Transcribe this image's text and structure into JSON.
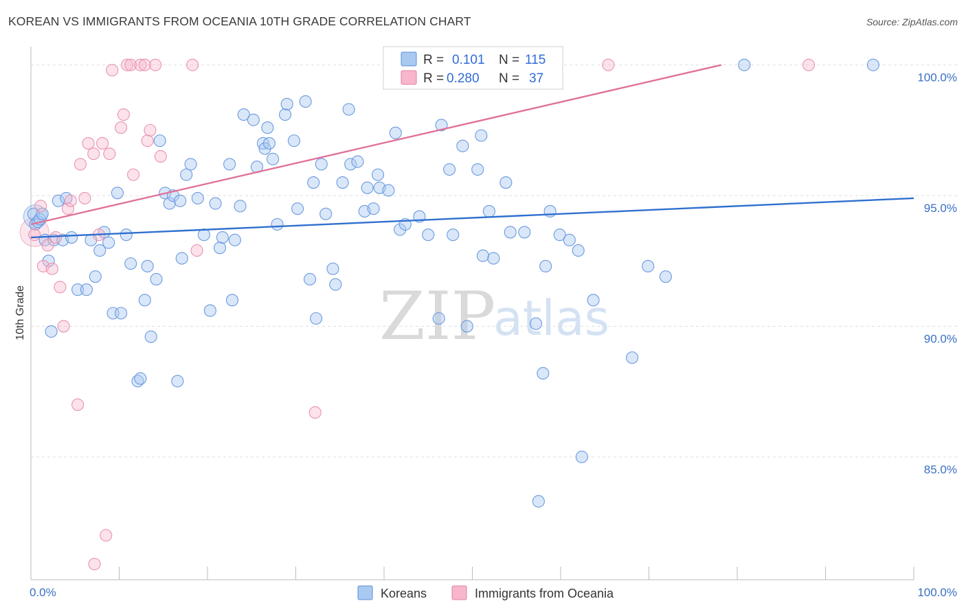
{
  "title": "KOREAN VS IMMIGRANTS FROM OCEANIA 10TH GRADE CORRELATION CHART",
  "source": "Source: ZipAtlas.com",
  "watermark": {
    "zip": "ZIP",
    "atlas": "atlas"
  },
  "legend": {
    "r_label": "R =",
    "n_label": "N =",
    "entries": [
      {
        "name": "Koreans",
        "r": "0.101",
        "n": "115",
        "fill": "#aac9f1",
        "stroke": "#5a8ed6"
      },
      {
        "name": "Immigrants from Oceania",
        "r": "0.280",
        "n": "37",
        "fill": "#f7b6cb",
        "stroke": "#e27fa0"
      }
    ]
  },
  "chart_data": {
    "type": "scatter",
    "title": "KOREAN VS IMMIGRANTS FROM OCEANIA 10TH GRADE CORRELATION CHART",
    "xlabel": "",
    "ylabel": "10th Grade",
    "xlim": [
      0,
      100
    ],
    "ylim": [
      80.3,
      100.7
    ],
    "x_tick_labels": [
      "0.0%",
      "100.0%"
    ],
    "y_ticks": [
      85,
      90,
      95,
      100
    ],
    "y_tick_labels": [
      "85.0%",
      "90.0%",
      "95.0%",
      "100.0%"
    ],
    "grid": true,
    "colors": {
      "Koreans": "#5a8ed6",
      "Immigrants from Oceania": "#e27fa0",
      "korean_line": "#2f6fcf",
      "oceania_line": "#e0729a"
    },
    "series": [
      {
        "name": "Koreans",
        "r": 0.101,
        "n": 115,
        "trendline": {
          "x": [
            0,
            100
          ],
          "y": [
            93.4,
            94.9
          ]
        },
        "points": [
          [
            0.3,
            94.3
          ],
          [
            0.5,
            93.9
          ],
          [
            0.8,
            94.0
          ],
          [
            1.0,
            94.1
          ],
          [
            1.3,
            94.3
          ],
          [
            1.6,
            93.3
          ],
          [
            2.0,
            92.5
          ],
          [
            2.3,
            89.8
          ],
          [
            2.6,
            93.3
          ],
          [
            3.1,
            94.8
          ],
          [
            3.6,
            93.3
          ],
          [
            4.0,
            94.9
          ],
          [
            4.6,
            93.4
          ],
          [
            5.3,
            91.4
          ],
          [
            6.3,
            91.4
          ],
          [
            6.8,
            93.3
          ],
          [
            7.3,
            91.9
          ],
          [
            7.8,
            92.9
          ],
          [
            8.3,
            93.6
          ],
          [
            8.8,
            93.2
          ],
          [
            9.3,
            90.5
          ],
          [
            9.8,
            95.1
          ],
          [
            10.2,
            90.5
          ],
          [
            10.8,
            93.5
          ],
          [
            11.3,
            92.4
          ],
          [
            12.1,
            87.9
          ],
          [
            12.4,
            88.0
          ],
          [
            12.9,
            91.0
          ],
          [
            13.2,
            92.3
          ],
          [
            13.6,
            89.6
          ],
          [
            14.2,
            91.8
          ],
          [
            14.6,
            97.1
          ],
          [
            15.2,
            95.1
          ],
          [
            15.7,
            94.7
          ],
          [
            16.1,
            95.0
          ],
          [
            16.6,
            87.9
          ],
          [
            17.1,
            92.6
          ],
          [
            17.6,
            95.8
          ],
          [
            18.1,
            96.2
          ],
          [
            18.9,
            94.9
          ],
          [
            19.6,
            93.5
          ],
          [
            20.3,
            90.6
          ],
          [
            20.9,
            94.7
          ],
          [
            21.4,
            93.0
          ],
          [
            21.7,
            93.4
          ],
          [
            22.5,
            96.2
          ],
          [
            22.8,
            91.0
          ],
          [
            23.1,
            93.3
          ],
          [
            23.7,
            94.6
          ],
          [
            24.1,
            98.1
          ],
          [
            25.2,
            97.9
          ],
          [
            25.6,
            96.1
          ],
          [
            26.3,
            97.0
          ],
          [
            26.5,
            96.8
          ],
          [
            27.0,
            97.0
          ],
          [
            27.4,
            96.4
          ],
          [
            27.9,
            93.9
          ],
          [
            28.8,
            98.1
          ],
          [
            29.0,
            98.5
          ],
          [
            29.8,
            97.1
          ],
          [
            30.2,
            94.5
          ],
          [
            31.1,
            98.6
          ],
          [
            31.6,
            91.8
          ],
          [
            32.0,
            95.5
          ],
          [
            32.3,
            90.3
          ],
          [
            32.9,
            96.2
          ],
          [
            33.4,
            94.3
          ],
          [
            34.2,
            92.2
          ],
          [
            34.5,
            91.6
          ],
          [
            35.3,
            95.5
          ],
          [
            36.0,
            98.3
          ],
          [
            36.2,
            96.2
          ],
          [
            37.0,
            96.3
          ],
          [
            37.8,
            94.4
          ],
          [
            38.1,
            95.3
          ],
          [
            38.8,
            94.5
          ],
          [
            39.3,
            95.8
          ],
          [
            39.5,
            95.3
          ],
          [
            40.5,
            95.2
          ],
          [
            41.3,
            97.4
          ],
          [
            41.8,
            93.7
          ],
          [
            42.4,
            93.9
          ],
          [
            45.0,
            93.5
          ],
          [
            46.2,
            90.3
          ],
          [
            46.5,
            97.7
          ],
          [
            47.4,
            96.0
          ],
          [
            47.8,
            93.5
          ],
          [
            48.9,
            96.9
          ],
          [
            49.4,
            90.0
          ],
          [
            50.6,
            96.0
          ],
          [
            51.0,
            97.3
          ],
          [
            51.2,
            92.7
          ],
          [
            51.9,
            94.4
          ],
          [
            52.4,
            92.6
          ],
          [
            53.8,
            95.5
          ],
          [
            54.3,
            93.6
          ],
          [
            55.9,
            93.6
          ],
          [
            57.2,
            90.1
          ],
          [
            58.0,
            88.2
          ],
          [
            58.3,
            92.3
          ],
          [
            58.8,
            94.4
          ],
          [
            59.9,
            93.5
          ],
          [
            61.0,
            93.3
          ],
          [
            62.0,
            92.9
          ],
          [
            62.4,
            85.0
          ],
          [
            63.7,
            91.0
          ],
          [
            68.1,
            88.8
          ],
          [
            69.9,
            92.3
          ],
          [
            71.9,
            91.9
          ],
          [
            57.5,
            83.3
          ],
          [
            80.8,
            100.0
          ],
          [
            95.4,
            100.0
          ],
          [
            16.9,
            94.8
          ],
          [
            26.8,
            97.6
          ],
          [
            44.0,
            94.2
          ]
        ]
      },
      {
        "name": "Immigrants from Oceania",
        "r": 0.28,
        "n": 37,
        "trendline": {
          "x": [
            0,
            78.2
          ],
          "y": [
            93.9,
            100.0
          ]
        },
        "points": [
          [
            0.4,
            93.5
          ],
          [
            1.1,
            94.6
          ],
          [
            1.4,
            92.3
          ],
          [
            1.9,
            93.1
          ],
          [
            2.4,
            92.2
          ],
          [
            2.8,
            93.4
          ],
          [
            3.3,
            91.5
          ],
          [
            3.7,
            90.0
          ],
          [
            4.2,
            94.5
          ],
          [
            4.5,
            94.8
          ],
          [
            5.3,
            87.0
          ],
          [
            5.6,
            96.2
          ],
          [
            6.1,
            94.9
          ],
          [
            6.5,
            97.0
          ],
          [
            7.1,
            96.6
          ],
          [
            7.7,
            93.5
          ],
          [
            8.1,
            97.0
          ],
          [
            8.5,
            82.0
          ],
          [
            8.9,
            96.6
          ],
          [
            9.2,
            99.8
          ],
          [
            10.2,
            97.6
          ],
          [
            10.5,
            98.1
          ],
          [
            10.9,
            100.0
          ],
          [
            11.3,
            100.0
          ],
          [
            11.6,
            95.8
          ],
          [
            12.4,
            100.0
          ],
          [
            12.9,
            100.0
          ],
          [
            13.2,
            97.1
          ],
          [
            13.5,
            97.5
          ],
          [
            14.1,
            100.0
          ],
          [
            14.7,
            96.5
          ],
          [
            18.3,
            100.0
          ],
          [
            18.8,
            92.9
          ],
          [
            32.2,
            86.7
          ],
          [
            7.2,
            80.9
          ],
          [
            65.4,
            100.0
          ],
          [
            88.1,
            100.0
          ]
        ]
      }
    ]
  }
}
